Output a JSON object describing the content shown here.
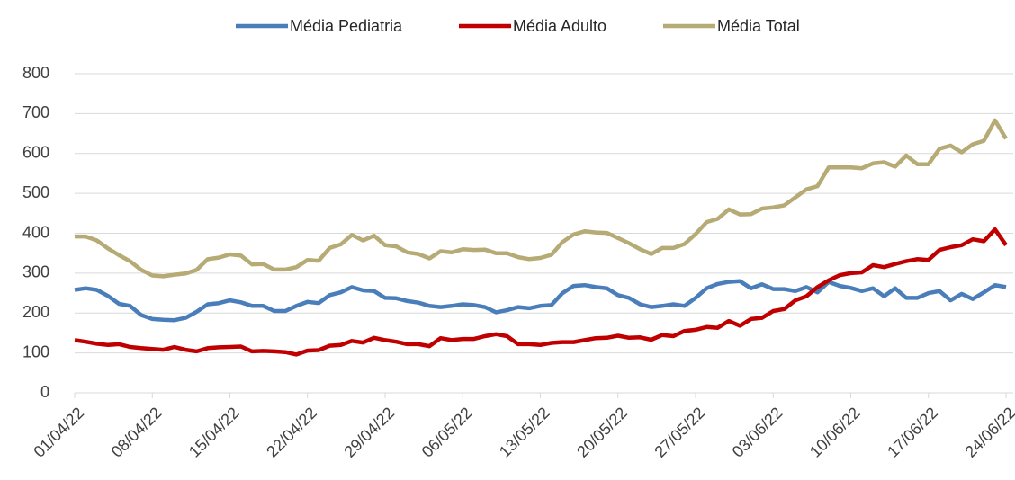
{
  "chart_data": {
    "type": "line",
    "categories": [
      "01/04/22",
      null,
      null,
      null,
      null,
      null,
      null,
      "08/04/22",
      null,
      null,
      null,
      null,
      null,
      null,
      "15/04/22",
      null,
      null,
      null,
      null,
      null,
      null,
      "22/04/22",
      null,
      null,
      null,
      null,
      null,
      null,
      "29/04/22",
      null,
      null,
      null,
      null,
      null,
      null,
      "06/05/22",
      null,
      null,
      null,
      null,
      null,
      null,
      "13/05/22",
      null,
      null,
      null,
      null,
      null,
      null,
      "20/05/22",
      null,
      null,
      null,
      null,
      null,
      null,
      "27/05/22",
      null,
      null,
      null,
      null,
      null,
      null,
      "03/06/22",
      null,
      null,
      null,
      null,
      null,
      null,
      "10/06/22",
      null,
      null,
      null,
      null,
      null,
      null,
      "17/06/22",
      null,
      null,
      null,
      null,
      null,
      null,
      "24/06/22"
    ],
    "series": [
      {
        "name": "Média Pediatria",
        "color": "#4a7ebb",
        "values": [
          258,
          262,
          258,
          243,
          223,
          218,
          195,
          185,
          183,
          182,
          188,
          203,
          222,
          225,
          232,
          227,
          218,
          218,
          205,
          205,
          218,
          228,
          225,
          245,
          252,
          265,
          257,
          255,
          238,
          237,
          230,
          226,
          218,
          215,
          218,
          222,
          220,
          215,
          202,
          207,
          215,
          212,
          218,
          220,
          250,
          268,
          270,
          265,
          262,
          245,
          238,
          222,
          215,
          218,
          222,
          218,
          238,
          262,
          273,
          278,
          280,
          262,
          272,
          260,
          260,
          255,
          265,
          252,
          278,
          268,
          263,
          255,
          262,
          242,
          262,
          238,
          238,
          250,
          255,
          232,
          248,
          235,
          252,
          270,
          265
        ]
      },
      {
        "name": "Média Adulto",
        "color": "#c00000",
        "values": [
          132,
          128,
          123,
          120,
          122,
          115,
          112,
          110,
          108,
          115,
          108,
          104,
          112,
          114,
          115,
          116,
          104,
          105,
          104,
          102,
          96,
          106,
          107,
          118,
          120,
          130,
          126,
          138,
          132,
          128,
          122,
          122,
          117,
          137,
          132,
          135,
          135,
          142,
          147,
          142,
          122,
          122,
          120,
          125,
          127,
          127,
          132,
          137,
          138,
          143,
          138,
          139,
          133,
          145,
          142,
          155,
          158,
          165,
          163,
          180,
          168,
          185,
          188,
          205,
          210,
          232,
          242,
          265,
          282,
          295,
          300,
          302,
          320,
          315,
          323,
          330,
          335,
          333,
          358,
          365,
          370,
          385,
          380,
          410,
          370
        ]
      },
      {
        "name": "Média Total",
        "color": "#b6aa75",
        "values": [
          392,
          392,
          382,
          362,
          345,
          330,
          308,
          294,
          292,
          296,
          299,
          308,
          335,
          339,
          347,
          344,
          322,
          323,
          309,
          309,
          315,
          333,
          331,
          363,
          372,
          396,
          382,
          394,
          370,
          367,
          352,
          348,
          337,
          355,
          352,
          360,
          358,
          359,
          350,
          350,
          340,
          335,
          338,
          346,
          378,
          397,
          405,
          402,
          401,
          388,
          375,
          360,
          348,
          363,
          363,
          373,
          398,
          428,
          436,
          460,
          447,
          448,
          462,
          465,
          470,
          490,
          510,
          518,
          565,
          565,
          565,
          563,
          575,
          578,
          567,
          595,
          573,
          573,
          612,
          620,
          603,
          623,
          632,
          683,
          637
        ]
      }
    ],
    "ylim": [
      0,
      800
    ],
    "yticks": [
      0,
      100,
      200,
      300,
      400,
      500,
      600,
      700,
      800
    ],
    "grid": true,
    "legend": "top"
  }
}
